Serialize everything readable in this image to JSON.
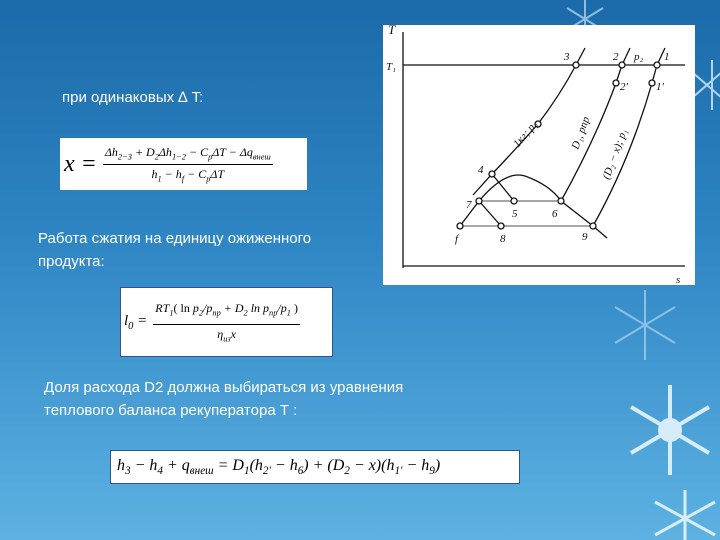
{
  "text1": "при одинаковых ∆ T:",
  "text2_line1": "Работа сжатия на единицу ожиженного",
  "text2_line2": "продукта:",
  "text3_line1": "Доля расхода  D2 должна выбираться из уравнения",
  "text3_line2": "теплового баланса рекуператора Т :",
  "formula1": {
    "lhs": "x =",
    "num": [
      [
        "Δh",
        "2−3"
      ],
      [
        " + D",
        "2"
      ],
      [
        "Δh",
        "1−2"
      ],
      [
        " − C",
        "p"
      ],
      [
        "ΔT − Δq",
        "внеш"
      ]
    ],
    "den": [
      [
        "h",
        "1"
      ],
      [
        " − h",
        "f"
      ],
      [
        " − C",
        "p"
      ],
      [
        "ΔT",
        ""
      ]
    ]
  },
  "formula2": {
    "lhs": [
      "l",
      "0",
      " ="
    ],
    "num": [
      [
        "RT",
        "1"
      ],
      [
        "( ln ",
        ""
      ],
      [
        "p",
        "2"
      ],
      [
        "/p",
        "пр"
      ],
      [
        " + D",
        "2"
      ],
      [
        " ln p",
        "пр"
      ],
      [
        "/p",
        "1"
      ],
      [
        " )",
        ""
      ]
    ],
    "den": [
      [
        "η",
        "из"
      ],
      [
        "x",
        ""
      ]
    ]
  },
  "formula3": [
    [
      "h",
      "3"
    ],
    [
      " − h",
      "4"
    ],
    [
      " + q",
      "внеш"
    ],
    [
      " = D",
      "1"
    ],
    [
      "(h",
      "2'"
    ],
    [
      " − h",
      "6"
    ],
    [
      ") + (D",
      "2"
    ],
    [
      " − x)(h",
      "1'"
    ],
    [
      " − h",
      "9"
    ],
    [
      ")",
      ""
    ]
  ],
  "diagram": {
    "axis_y": "T",
    "axis_x": "s",
    "t1_label": "T₁",
    "points": [
      "3",
      "2",
      "p₂",
      "1",
      "2'",
      "1'",
      "4",
      "7",
      "5",
      "6",
      "f",
      "8",
      "9"
    ],
    "curve_labels": [
      "1кг; p₂",
      "D₁, pпр",
      "(D₂ − x); p₁"
    ]
  }
}
